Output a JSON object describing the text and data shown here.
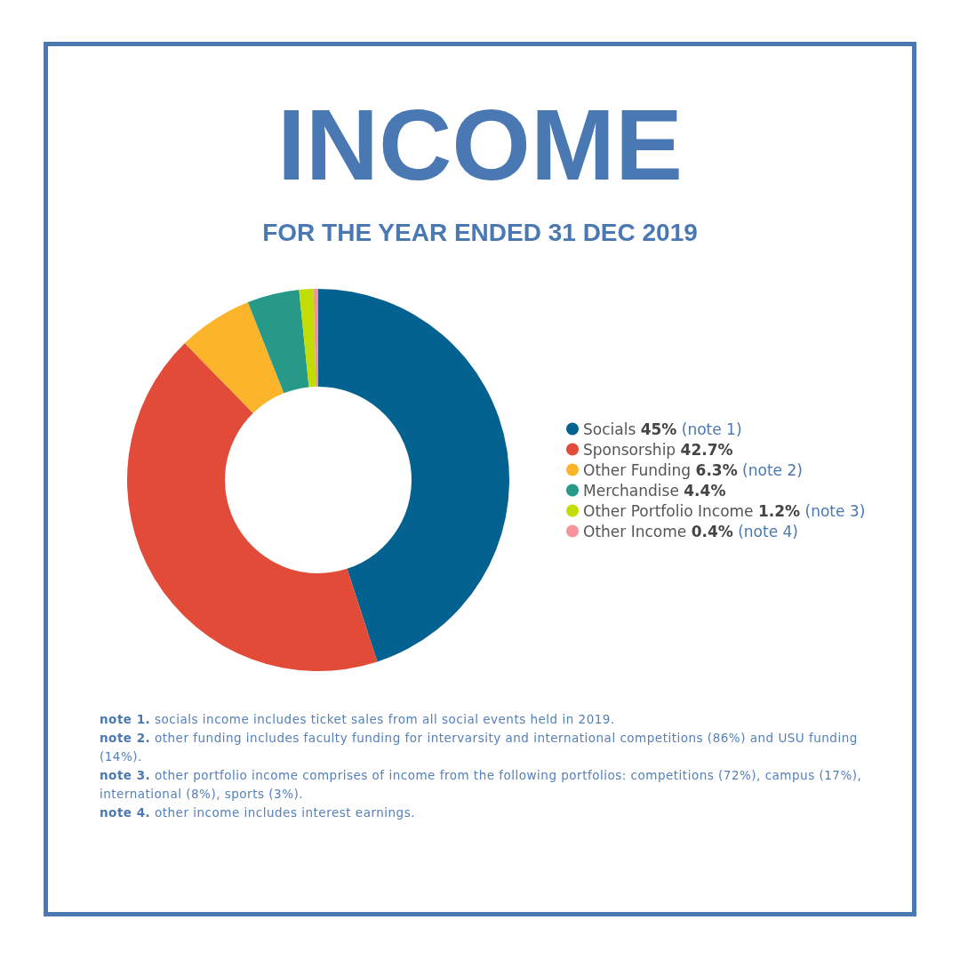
{
  "chart_data": {
    "type": "donut",
    "title": "INCOME",
    "subtitle": "FOR THE YEAR ENDED 31 DEC 2019",
    "categories": [
      "Socials",
      "Sponsorship",
      "Other Funding",
      "Merchandise",
      "Other Portfolio Income",
      "Other Income"
    ],
    "values": [
      45,
      42.7,
      6.3,
      4.4,
      1.2,
      0.4
    ],
    "value_labels": [
      "45%",
      "42.7%",
      "6.3%",
      "4.4%",
      "1.2%",
      "0.4%"
    ],
    "colors": [
      "#03628f",
      "#e24b37",
      "#fcb42b",
      "#269989",
      "#c2dd05",
      "#f4949a"
    ],
    "legend": "right",
    "annotations": [
      {
        "text": "(note 1)",
        "x": "Socials"
      },
      {
        "text": "(note 2)",
        "x": "Other Funding"
      },
      {
        "text": "(note 3)",
        "x": "Other Portfolio Income"
      },
      {
        "text": "(note 4)",
        "x": "Other Income"
      },
      "note 1. socials income includes ticket sales from all social events held in 2019.",
      "note 2. other funding includes faculty funding for intervarsity and international competitions (86%) and USU funding (14%).",
      "note 3. other portfolio income comprises of income from the following portfolios: competitions (72%), campus (17%), international (8%), sports (3%).",
      "note 4. other income includes interest earnings."
    ]
  }
}
